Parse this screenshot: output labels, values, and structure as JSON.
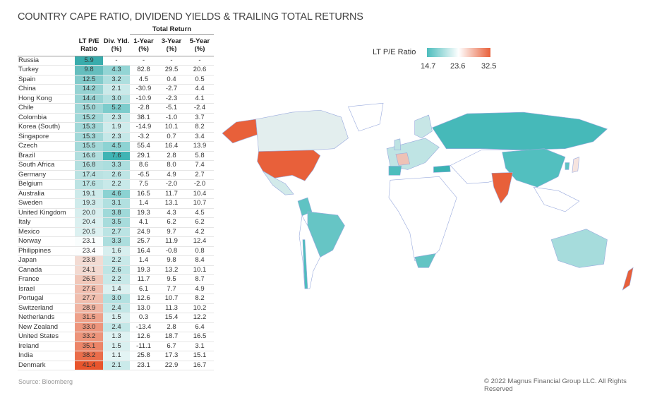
{
  "title": "COUNTRY CAPE RATIO, DIVIDEND YIELDS & TRAILING TOTAL RETURNS",
  "source": "Source: Bloomberg",
  "copyright": "© 2022 Magnus Financial Group LLC. All Rights Reserved",
  "colors": {
    "low": "#4dbdbd",
    "mid": "#ffffff",
    "high": "#e8603a"
  },
  "chart_data": {
    "type": "table",
    "group_header": "Total Return",
    "columns": [
      "LT P/E Ratio",
      "Div. Yld. (%)",
      "1-Year (%)",
      "3-Year (%)",
      "5-Year (%)"
    ],
    "rows": [
      [
        "Russia",
        "5.9",
        "-",
        "-",
        "-",
        "-"
      ],
      [
        "Turkey",
        "9.8",
        "4.3",
        "82.8",
        "29.5",
        "20.6"
      ],
      [
        "Spain",
        "12.5",
        "3.2",
        "4.5",
        "0.4",
        "0.5"
      ],
      [
        "China",
        "14.2",
        "2.1",
        "-30.9",
        "-2.7",
        "4.4"
      ],
      [
        "Hong Kong",
        "14.4",
        "3.0",
        "-10.9",
        "-2.3",
        "4.1"
      ],
      [
        "Chile",
        "15.0",
        "5.2",
        "-2.8",
        "-5.1",
        "-2.4"
      ],
      [
        "Colombia",
        "15.2",
        "2.3",
        "38.1",
        "-1.0",
        "3.7"
      ],
      [
        "Korea (South)",
        "15.3",
        "1.9",
        "-14.9",
        "10.1",
        "8.2"
      ],
      [
        "Singapore",
        "15.3",
        "2.3",
        "-3.2",
        "0.7",
        "3.4"
      ],
      [
        "Czech",
        "15.5",
        "4.5",
        "55.4",
        "16.4",
        "13.9"
      ],
      [
        "Brazil",
        "16.6",
        "7.6",
        "29.1",
        "2.8",
        "5.8"
      ],
      [
        "South Africa",
        "16.8",
        "3.3",
        "8.6",
        "8.0",
        "7.4"
      ],
      [
        "Germany",
        "17.4",
        "2.6",
        "-6.5",
        "4.9",
        "2.7"
      ],
      [
        "Belgium",
        "17.6",
        "2.2",
        "7.5",
        "-2.0",
        "-2.0"
      ],
      [
        "Australia",
        "19.1",
        "4.6",
        "16.5",
        "11.7",
        "10.4"
      ],
      [
        "Sweden",
        "19.3",
        "3.1",
        "1.4",
        "13.1",
        "10.7"
      ],
      [
        "United Kingdom",
        "20.0",
        "3.8",
        "19.3",
        "4.3",
        "4.5"
      ],
      [
        "Italy",
        "20.4",
        "3.5",
        "4.1",
        "6.2",
        "6.2"
      ],
      [
        "Mexico",
        "20.5",
        "2.7",
        "24.9",
        "9.7",
        "4.2"
      ],
      [
        "Norway",
        "23.1",
        "3.3",
        "25.7",
        "11.9",
        "12.4"
      ],
      [
        "Philippines",
        "23.4",
        "1.6",
        "16.4",
        "-0.8",
        "0.8"
      ],
      [
        "Japan",
        "23.8",
        "2.2",
        "1.4",
        "9.8",
        "8.4"
      ],
      [
        "Canada",
        "24.1",
        "2.6",
        "19.3",
        "13.2",
        "10.1"
      ],
      [
        "France",
        "26.5",
        "2.2",
        "11.7",
        "9.5",
        "8.7"
      ],
      [
        "Israel",
        "27.6",
        "1.4",
        "6.1",
        "7.7",
        "4.9"
      ],
      [
        "Portugal",
        "27.7",
        "3.0",
        "12.6",
        "10.7",
        "8.2"
      ],
      [
        "Switzerland",
        "28.9",
        "2.4",
        "13.0",
        "11.3",
        "10.2"
      ],
      [
        "Netherlands",
        "31.5",
        "1.5",
        "0.3",
        "15.4",
        "12.2"
      ],
      [
        "New Zealand",
        "33.0",
        "2.4",
        "-13.4",
        "2.8",
        "6.4"
      ],
      [
        "United States",
        "33.2",
        "1.3",
        "12.6",
        "18.7",
        "16.5"
      ],
      [
        "Ireland",
        "35.1",
        "1.5",
        "-11.1",
        "6.7",
        "3.1"
      ],
      [
        "India",
        "38.2",
        "1.1",
        "25.8",
        "17.3",
        "15.1"
      ],
      [
        "Denmark",
        "41.4",
        "2.1",
        "23.1",
        "22.9",
        "16.7"
      ]
    ],
    "map_legend": {
      "title": "LT P/E Ratio",
      "ticks": [
        "14.7",
        "23.6",
        "32.5"
      ],
      "range": [
        14.7,
        32.5
      ]
    }
  }
}
